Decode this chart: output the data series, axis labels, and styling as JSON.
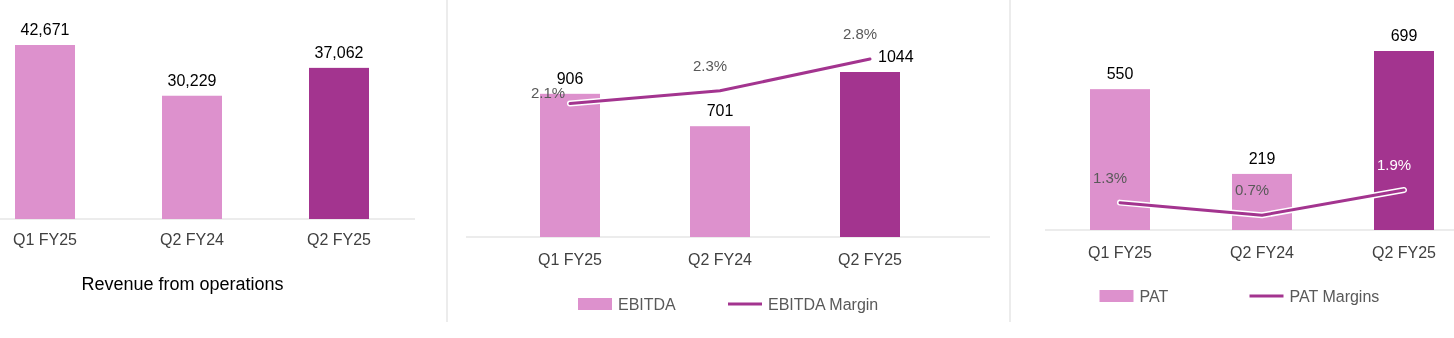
{
  "chart_data": [
    {
      "type": "bar",
      "categories": [
        "Q1 FY25",
        "Q2 FY24",
        "Q2 FY25"
      ],
      "values": [
        42671,
        30229,
        37062
      ],
      "value_labels": [
        "42,671",
        "30,229",
        "37,062"
      ],
      "colors": [
        "#dd91cd",
        "#dd91cd",
        "#a3348f"
      ],
      "xlabel": "Revenue from operations"
    },
    {
      "type": "bar",
      "categories": [
        "Q1 FY25",
        "Q2 FY24",
        "Q2 FY25"
      ],
      "legend": "bottom",
      "series": [
        {
          "name": "EBITDA",
          "color": "#dd91cd",
          "colors": [
            "#dd91cd",
            "#dd91cd",
            "#a3348f"
          ],
          "values": [
            906,
            701,
            1044
          ],
          "value_labels": [
            "906",
            "701",
            "1044"
          ]
        },
        {
          "name": "EBITDA Margin",
          "type": "line",
          "axis": "y2",
          "color": "#a3348f",
          "values": [
            2.1,
            2.3,
            2.8
          ],
          "value_labels": [
            "2.1%",
            "2.3%",
            "2.8%"
          ]
        }
      ]
    },
    {
      "type": "bar",
      "categories": [
        "Q1 FY25",
        "Q2 FY24",
        "Q2 FY25"
      ],
      "legend": "bottom",
      "series": [
        {
          "name": "PAT",
          "color": "#dd91cd",
          "colors": [
            "#dd91cd",
            "#dd91cd",
            "#a3348f"
          ],
          "values": [
            550,
            219,
            699
          ],
          "value_labels": [
            "550",
            "219",
            "699"
          ]
        },
        {
          "name": "PAT Margins",
          "type": "line",
          "axis": "y2",
          "color": "#a3348f",
          "values": [
            1.3,
            0.7,
            1.9
          ],
          "value_labels": [
            "1.3%",
            "0.7%",
            "1.9%"
          ]
        }
      ]
    }
  ]
}
